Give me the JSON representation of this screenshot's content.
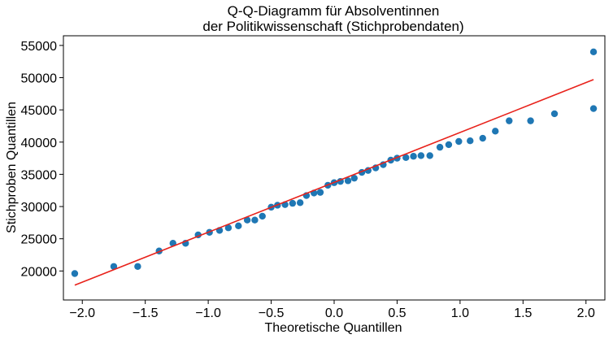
{
  "chart_data": {
    "type": "scatter",
    "title": [
      "Q-Q-Diagramm für Absolventinnen",
      "der Politikwissenschaft (Stichprobendaten)"
    ],
    "xlabel": "Theoretische Quantillen",
    "ylabel": "Stichproben Quantillen",
    "xlim": [
      -2.15,
      2.15
    ],
    "ylim": [
      15500,
      56500
    ],
    "x_ticks": [
      -2.0,
      -1.5,
      -1.0,
      -0.5,
      0.0,
      0.5,
      1.0,
      1.5,
      2.0
    ],
    "x_tick_labels": [
      "−2.0",
      "−1.5",
      "−1.0",
      "−0.5",
      "0.0",
      "0.5",
      "1.0",
      "1.5",
      "2.0"
    ],
    "y_ticks": [
      20000,
      25000,
      30000,
      35000,
      40000,
      45000,
      50000,
      55000
    ],
    "y_tick_labels": [
      "20000",
      "25000",
      "30000",
      "35000",
      "40000",
      "45000",
      "50000",
      "55000"
    ],
    "grid": false,
    "series": [
      {
        "name": "Stichprobendaten",
        "color": "#1f77b4",
        "x": [
          -2.06,
          -1.75,
          -1.56,
          -1.39,
          -1.28,
          -1.18,
          -1.08,
          -0.99,
          -0.91,
          -0.84,
          -0.76,
          -0.69,
          -0.63,
          -0.57,
          -0.5,
          -0.45,
          -0.39,
          -0.33,
          -0.27,
          -0.22,
          -0.16,
          -0.11,
          -0.05,
          0.0,
          0.05,
          0.11,
          0.16,
          0.22,
          0.27,
          0.33,
          0.39,
          0.45,
          0.5,
          0.57,
          0.63,
          0.69,
          0.76,
          0.84,
          0.91,
          0.99,
          1.08,
          1.18,
          1.28,
          1.39,
          1.56,
          1.75,
          2.06
        ],
        "y": [
          19600,
          20700,
          20700,
          23100,
          24300,
          24300,
          25600,
          26000,
          26300,
          26700,
          27000,
          27900,
          27900,
          28500,
          29900,
          30200,
          30300,
          30500,
          30600,
          31700,
          32100,
          32200,
          33300,
          33700,
          33900,
          34000,
          34400,
          35300,
          35600,
          36000,
          36500,
          37200,
          37500,
          37600,
          37800,
          37900,
          37900,
          39200,
          39600,
          40100,
          40200,
          40600,
          41700,
          43300,
          43300,
          44400,
          45200
        ]
      }
    ],
    "outlier_point": {
      "x": 2.06,
      "y": 54000
    },
    "fit_line": {
      "color": "#e8221b",
      "x": [
        -2.06,
        2.06
      ],
      "y": [
        17800,
        49700
      ]
    }
  }
}
